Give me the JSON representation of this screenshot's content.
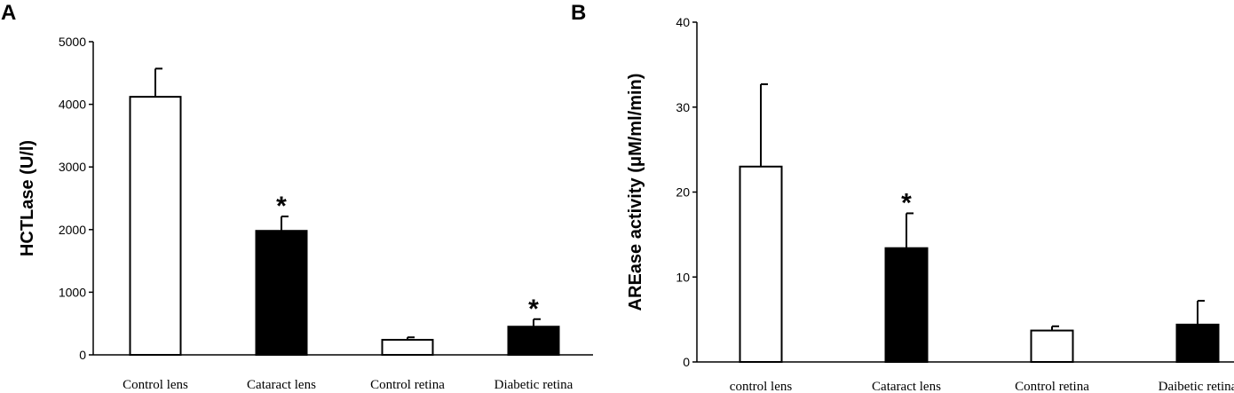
{
  "chart_data": [
    {
      "type": "bar",
      "panel": "A",
      "title": "",
      "xlabel": "",
      "ylabel": "HCTLase (U/l)",
      "ylim": [
        0,
        5000
      ],
      "yticks": [
        0,
        1000,
        2000,
        3000,
        4000,
        5000
      ],
      "categories": [
        "Control lens",
        "Cataract lens",
        "Control retina",
        "Diabetic retina"
      ],
      "values": [
        4120,
        1980,
        240,
        450
      ],
      "errors": [
        450,
        230,
        40,
        120
      ],
      "fills": [
        "#ffffff",
        "#000000",
        "#ffffff",
        "#000000"
      ],
      "significance": [
        "",
        "*",
        "",
        "*"
      ]
    },
    {
      "type": "bar",
      "panel": "B",
      "title": "",
      "xlabel": "",
      "ylabel": "AREase activity (μM/ml/min)",
      "ylim": [
        0,
        40
      ],
      "yticks": [
        0,
        10,
        20,
        30,
        40
      ],
      "categories": [
        "control lens",
        "Cataract lens",
        "Control retina",
        "Daibetic retina"
      ],
      "values": [
        23,
        13.4,
        3.7,
        4.4
      ],
      "errors": [
        9.7,
        4.1,
        0.5,
        2.8
      ],
      "fills": [
        "#ffffff",
        "#000000",
        "#ffffff",
        "#000000"
      ],
      "significance": [
        "",
        "*",
        "",
        ""
      ]
    }
  ]
}
